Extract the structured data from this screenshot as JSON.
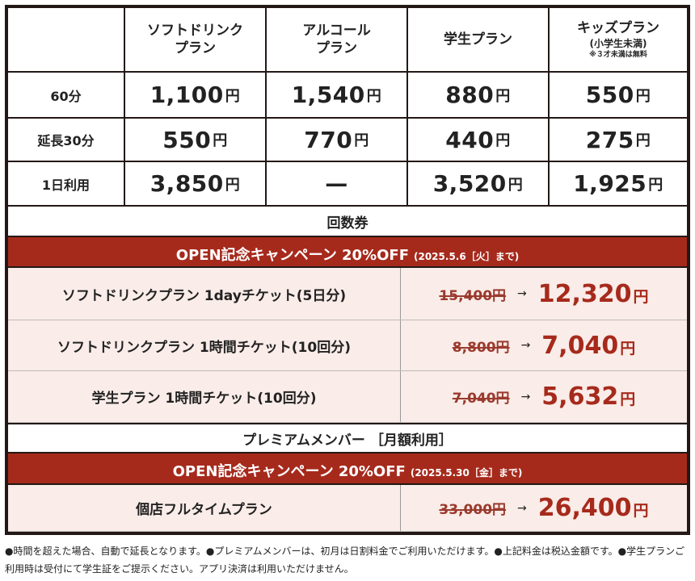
{
  "table": {
    "columns": [
      {
        "title": "ソフトドリンク\nプラン",
        "line1": "ソフトドリンク",
        "line2": "プラン"
      },
      {
        "line1": "アルコール",
        "line2": "プラン"
      },
      {
        "line1": "学生プラン"
      },
      {
        "line1": "キッズプラン",
        "line2": "(小学生未満)",
        "note": "※３才未満は無料"
      }
    ],
    "rows": [
      {
        "label": "60分",
        "values": [
          "1,100",
          "1,540",
          "880",
          "550"
        ]
      },
      {
        "label": "延長30分",
        "values": [
          "550",
          "770",
          "440",
          "275"
        ]
      },
      {
        "label": "1日利用",
        "values": [
          "3,850",
          "—",
          "3,520",
          "1,925"
        ]
      }
    ],
    "currency": "円"
  },
  "tickets": {
    "title": "回数券",
    "campaign": {
      "title": "OPEN記念キャンペーン 20%OFF",
      "until": "(2025.5.6［火］まで)"
    },
    "items": [
      {
        "name": "ソフトドリンクプラン 1dayチケット(5日分)",
        "old": "15,400円",
        "new": "12,320"
      },
      {
        "name": "ソフトドリンクプラン 1時間チケット(10回分)",
        "old": "8,800円",
        "new": "7,040"
      },
      {
        "name": "学生プラン 1時間チケット(10回分)",
        "old": "7,040円",
        "new": "5,632"
      }
    ]
  },
  "premium": {
    "title": "プレミアムメンバー ［月額利用］",
    "campaign": {
      "title": "OPEN記念キャンペーン 20%OFF",
      "until": "(2025.5.30［金］まで)"
    },
    "items": [
      {
        "name": "個店フルタイムプラン",
        "old": "33,000円",
        "new": "26,400"
      }
    ]
  },
  "arrow": "→",
  "notes": "●時間を超えた場合、自動で延長となります。●プレミアムメンバーは、初月は日割料金でご利用いただけます。●上記料金は税込金額です。●学生プランご利用時は受付にて学生証をご提示ください。アプリ決済は利用いただけません。",
  "colors": {
    "accent": "#a62a1c",
    "row_bg": "#faece8",
    "border": "#231815"
  }
}
